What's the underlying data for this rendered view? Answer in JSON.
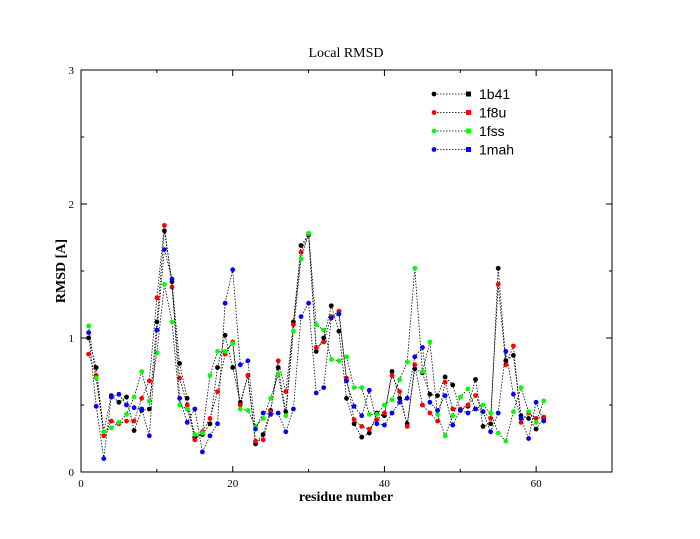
{
  "chart_data": {
    "type": "line",
    "title": "Local RMSD",
    "xlabel": "residue number",
    "ylabel": "RMSD [A]",
    "xlim": [
      0,
      70
    ],
    "ylim": [
      0,
      3
    ],
    "xticks": [
      0,
      20,
      40,
      60
    ],
    "yticks": [
      0,
      1,
      2,
      3
    ],
    "xticks_minor": [
      10,
      30,
      50,
      70
    ],
    "yticks_minor": [
      0.5,
      1.5,
      2.5
    ],
    "legend_position": "top-right",
    "line_style": "dotted",
    "marker": "circle",
    "series": [
      {
        "name": "1b41",
        "color": "#000000",
        "x": [
          1,
          2,
          3,
          4,
          5,
          6,
          7,
          8,
          9,
          10,
          11,
          12,
          13,
          14,
          15,
          16,
          17,
          18,
          19,
          20,
          21,
          22,
          23,
          24,
          25,
          26,
          27,
          28,
          29,
          30,
          31,
          32,
          33,
          34,
          35,
          36,
          37,
          38,
          39,
          40,
          41,
          42,
          43,
          44,
          45,
          46,
          47,
          48,
          49,
          50,
          51,
          52,
          53,
          54,
          55,
          56,
          57,
          58,
          59,
          60,
          61
        ],
        "y": [
          1.0,
          0.78,
          0.3,
          0.57,
          0.52,
          0.56,
          0.31,
          0.46,
          0.47,
          1.12,
          1.8,
          1.42,
          0.81,
          0.55,
          0.26,
          0.28,
          0.36,
          0.78,
          1.02,
          0.78,
          0.52,
          0.72,
          0.21,
          0.28,
          0.46,
          0.78,
          0.45,
          1.12,
          1.69,
          1.77,
          0.9,
          1.0,
          1.24,
          1.05,
          0.55,
          0.36,
          0.26,
          0.29,
          0.44,
          0.42,
          0.75,
          0.55,
          0.36,
          0.77,
          0.74,
          0.58,
          0.57,
          0.71,
          0.65,
          0.46,
          0.49,
          0.69,
          0.34,
          0.36,
          1.52,
          0.83,
          0.87,
          0.42,
          0.4,
          0.32,
          0.4
        ]
      },
      {
        "name": "1f8u",
        "color": "#ff0000",
        "x": [
          1,
          2,
          3,
          4,
          5,
          6,
          7,
          8,
          9,
          10,
          11,
          12,
          13,
          14,
          15,
          16,
          17,
          18,
          19,
          20,
          21,
          22,
          23,
          24,
          25,
          26,
          27,
          28,
          29,
          30,
          31,
          32,
          33,
          34,
          35,
          36,
          37,
          38,
          39,
          40,
          41,
          42,
          43,
          44,
          45,
          46,
          47,
          48,
          49,
          50,
          51,
          52,
          53,
          54,
          55,
          56,
          57,
          58,
          59,
          60,
          61
        ],
        "y": [
          0.88,
          0.72,
          0.27,
          0.38,
          0.36,
          0.38,
          0.38,
          0.55,
          0.68,
          1.3,
          1.84,
          1.38,
          0.7,
          0.5,
          0.24,
          0.3,
          0.4,
          0.6,
          0.88,
          0.97,
          0.5,
          0.72,
          0.23,
          0.24,
          0.45,
          0.83,
          0.6,
          1.1,
          1.64,
          1.78,
          0.93,
          0.97,
          1.16,
          1.2,
          0.7,
          0.39,
          0.34,
          0.32,
          0.39,
          0.44,
          0.72,
          0.6,
          0.34,
          0.8,
          0.5,
          0.44,
          0.38,
          0.67,
          0.47,
          0.47,
          0.5,
          0.57,
          0.45,
          0.4,
          1.4,
          0.8,
          0.94,
          0.37,
          0.44,
          0.4,
          0.41
        ]
      },
      {
        "name": "1fss",
        "color": "#00ff00",
        "x": [
          1,
          2,
          3,
          4,
          5,
          6,
          7,
          8,
          9,
          10,
          11,
          12,
          13,
          14,
          15,
          16,
          17,
          18,
          19,
          20,
          21,
          22,
          23,
          24,
          25,
          26,
          27,
          28,
          29,
          30,
          31,
          32,
          33,
          34,
          35,
          36,
          37,
          38,
          39,
          40,
          41,
          42,
          43,
          44,
          45,
          46,
          47,
          48,
          49,
          50,
          51,
          52,
          53,
          54,
          55,
          56,
          57,
          58,
          59,
          60,
          61
        ],
        "y": [
          1.09,
          0.7,
          0.3,
          0.33,
          0.37,
          0.43,
          0.56,
          0.75,
          0.53,
          0.89,
          1.4,
          1.12,
          0.5,
          0.47,
          0.28,
          0.29,
          0.72,
          0.9,
          0.9,
          0.96,
          0.47,
          0.46,
          0.34,
          0.4,
          0.55,
          0.73,
          0.42,
          1.05,
          1.59,
          1.78,
          1.1,
          1.06,
          0.84,
          0.83,
          0.86,
          0.63,
          0.63,
          0.43,
          0.43,
          0.5,
          0.54,
          0.69,
          0.82,
          1.52,
          0.75,
          0.97,
          0.43,
          0.27,
          0.42,
          0.56,
          0.62,
          0.47,
          0.5,
          0.44,
          0.29,
          0.23,
          0.45,
          0.63,
          0.45,
          0.37,
          0.53
        ]
      },
      {
        "name": "1mah",
        "color": "#0000ff",
        "x": [
          1,
          2,
          3,
          4,
          5,
          6,
          7,
          8,
          9,
          10,
          11,
          12,
          13,
          14,
          15,
          16,
          17,
          18,
          19,
          20,
          21,
          22,
          23,
          24,
          25,
          26,
          27,
          28,
          29,
          30,
          31,
          32,
          33,
          34,
          35,
          36,
          37,
          38,
          39,
          40,
          41,
          42,
          43,
          44,
          45,
          46,
          47,
          48,
          49,
          50,
          51,
          52,
          53,
          54,
          55,
          56,
          57,
          58,
          59,
          60,
          61
        ],
        "y": [
          1.04,
          0.49,
          0.1,
          0.56,
          0.58,
          0.5,
          0.48,
          0.47,
          0.27,
          1.06,
          1.66,
          1.44,
          0.55,
          0.37,
          0.47,
          0.15,
          0.27,
          0.36,
          1.26,
          1.51,
          0.8,
          0.83,
          0.32,
          0.44,
          0.43,
          0.44,
          0.3,
          0.47,
          1.16,
          1.26,
          0.59,
          0.63,
          1.15,
          1.18,
          0.68,
          0.49,
          0.42,
          0.61,
          0.36,
          0.35,
          0.44,
          0.52,
          0.55,
          0.86,
          0.93,
          0.52,
          0.46,
          0.57,
          0.35,
          0.46,
          0.44,
          0.47,
          0.45,
          0.3,
          0.44,
          0.9,
          0.58,
          0.4,
          0.25,
          0.52,
          0.38
        ]
      }
    ]
  }
}
